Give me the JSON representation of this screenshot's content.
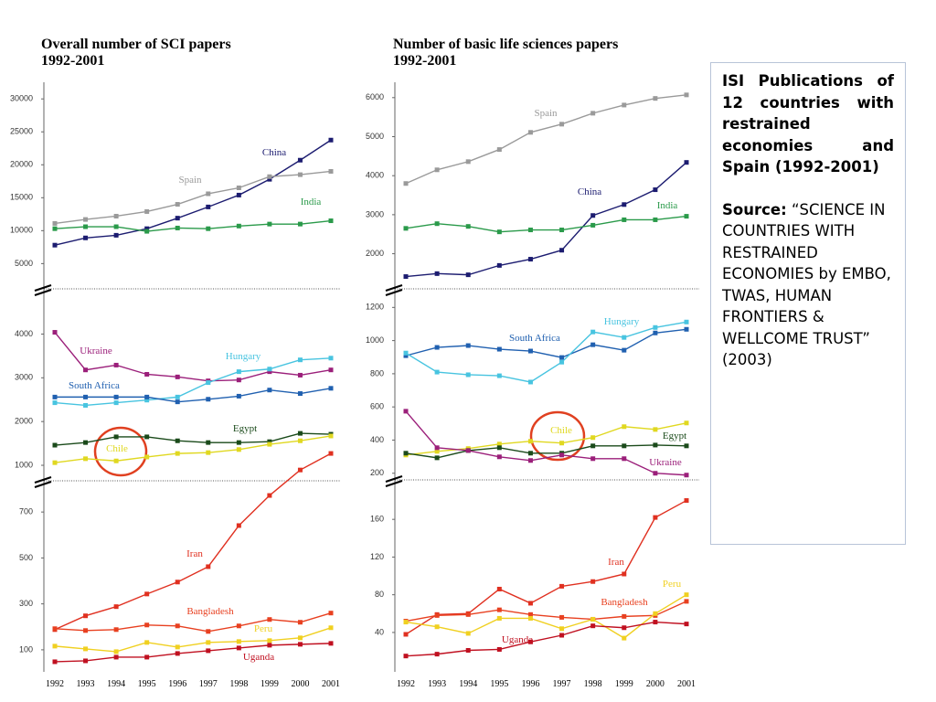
{
  "chart_data": [
    {
      "type": "line",
      "title": "Overall number of SCI papers",
      "subtitle": "1992-2001",
      "categories": [
        "1992",
        "1993",
        "1994",
        "1995",
        "1996",
        "1997",
        "1998",
        "1999",
        "2000",
        "2001"
      ],
      "panels": [
        {
          "ylim": [
            2000,
            31000
          ],
          "yticks": [
            5000,
            10000,
            15000,
            20000,
            25000,
            30000
          ],
          "series": [
            {
              "name": "China",
              "color": "#1c1c70",
              "values": [
                7800,
                8900,
                9300,
                10300,
                11900,
                13600,
                15400,
                17800,
                20700,
                23750
              ]
            },
            {
              "name": "Spain",
              "color": "#9a9a9a",
              "values": [
                11100,
                11700,
                12200,
                12900,
                14000,
                15600,
                16500,
                18200,
                18500,
                19000
              ]
            },
            {
              "name": "India",
              "color": "#2a9a4a",
              "values": [
                10300,
                10600,
                10600,
                9900,
                10400,
                10300,
                10700,
                11000,
                11000,
                11500
              ]
            }
          ]
        },
        {
          "ylim": [
            750,
            4950
          ],
          "yticks": [
            1000,
            2000,
            3000,
            4000
          ],
          "series": [
            {
              "name": "Ukraine",
              "color": "#9b1f7a",
              "values": [
                4040,
                3180,
                3290,
                3080,
                3020,
                2930,
                2950,
                3140,
                3060,
                3180
              ]
            },
            {
              "name": "Hungary",
              "color": "#48c4e0",
              "values": [
                2430,
                2370,
                2430,
                2490,
                2560,
                2890,
                3140,
                3200,
                3410,
                3450
              ]
            },
            {
              "name": "South Africa",
              "color": "#2060b0",
              "values": [
                2560,
                2560,
                2560,
                2560,
                2450,
                2510,
                2580,
                2720,
                2640,
                2760
              ]
            },
            {
              "name": "Egypt",
              "color": "#1a4a1a",
              "values": [
                1460,
                1520,
                1650,
                1650,
                1560,
                1520,
                1520,
                1540,
                1730,
                1710
              ]
            },
            {
              "name": "Chile",
              "color": "#e0d820",
              "values": [
                1060,
                1150,
                1100,
                1190,
                1270,
                1290,
                1360,
                1480,
                1560,
                1670
              ]
            }
          ]
        },
        {
          "ylim": [
            20,
            820
          ],
          "yticks": [
            100,
            300,
            500,
            700
          ],
          "series": [
            {
              "name": "Iran",
              "color": "#e03020",
              "values": [
                188,
                248,
                288,
                343,
                395,
                462,
                641,
                772,
                883,
                955
              ]
            },
            {
              "name": "Bangladesh",
              "color": "#e84020",
              "values": [
                192,
                184,
                188,
                208,
                204,
                180,
                204,
                232,
                220,
                260
              ]
            },
            {
              "name": "Peru",
              "color": "#f0d020",
              "values": [
                116,
                104,
                92,
                132,
                112,
                132,
                136,
                140,
                152,
                196
              ]
            },
            {
              "name": "Uganda",
              "color": "#c01020",
              "values": [
                48,
                52,
                68,
                68,
                84,
                96,
                108,
                120,
                124,
                128
              ]
            }
          ]
        }
      ]
    },
    {
      "type": "line",
      "title": "Number of basic life sciences papers",
      "subtitle": "1992-2001",
      "categories": [
        "1992",
        "1993",
        "1994",
        "1995",
        "1996",
        "1997",
        "1998",
        "1999",
        "2000",
        "2001"
      ],
      "panels": [
        {
          "ylim": [
            1100,
            6300
          ],
          "yticks": [
            2000,
            3000,
            4000,
            5000,
            6000
          ],
          "series": [
            {
              "name": "Spain",
              "color": "#9a9a9a",
              "values": [
                3800,
                4150,
                4360,
                4670,
                5110,
                5320,
                5600,
                5810,
                5980,
                6070
              ]
            },
            {
              "name": "China",
              "color": "#1c1c70",
              "values": [
                1415,
                1490,
                1460,
                1700,
                1860,
                2090,
                2980,
                3260,
                3640,
                4340
              ]
            },
            {
              "name": "India",
              "color": "#2a9a4a",
              "values": [
                2650,
                2770,
                2700,
                2560,
                2610,
                2610,
                2730,
                2870,
                2870,
                2960
              ]
            }
          ]
        },
        {
          "ylim": [
            160,
            1290
          ],
          "yticks": [
            200,
            400,
            600,
            800,
            1000,
            1200
          ],
          "series": [
            {
              "name": "South Africa",
              "color": "#2060b0",
              "values": [
                909,
                959,
                970,
                948,
                937,
                898,
                975,
                942,
                1046,
                1068
              ]
            },
            {
              "name": "Hungary",
              "color": "#48c4e0",
              "values": [
                925,
                810,
                794,
                788,
                750,
                870,
                1052,
                1019,
                1079,
                1112
              ]
            },
            {
              "name": "Chile",
              "color": "#e0d820",
              "values": [
                310,
                332,
                349,
                376,
                393,
                382,
                415,
                481,
                464,
                503
              ]
            },
            {
              "name": "Egypt",
              "color": "#1a4a1a",
              "values": [
                321,
                293,
                337,
                354,
                321,
                321,
                365,
                365,
                370,
                365
              ]
            },
            {
              "name": "Ukraine",
              "color": "#9b1f7a",
              "values": [
                574,
                354,
                337,
                299,
                277,
                310,
                288,
                288,
                200,
                189
              ]
            }
          ]
        },
        {
          "ylim": [
            5,
            198
          ],
          "yticks": [
            40,
            80,
            120,
            160
          ],
          "series": [
            {
              "name": "Iran",
              "color": "#e03020",
              "values": [
                38,
                59,
                60,
                86,
                71,
                89,
                94,
                102,
                162,
                180
              ]
            },
            {
              "name": "Bangladesh",
              "color": "#e84020",
              "values": [
                52,
                58,
                59,
                64,
                59,
                56,
                54,
                57,
                58,
                73
              ]
            },
            {
              "name": "Peru",
              "color": "#f0d020",
              "values": [
                51,
                46,
                39,
                55,
                55,
                44,
                54,
                34,
                60,
                80
              ]
            },
            {
              "name": "Uganda",
              "color": "#c01020",
              "values": [
                15,
                17,
                21,
                22,
                30,
                37,
                47,
                45,
                51,
                49
              ]
            }
          ]
        }
      ]
    }
  ],
  "note": {
    "title": "ISI Publications of 12 countries with restrained economies and Spain (1992-2001)",
    "source_label": "Source:",
    "source_text": "“SCIENCE IN COUNTRIES WITH RESTRAINED ECONOMIES by EMBO, TWAS, HUMAN FRONTIERS & WELLCOME TRUST”",
    "source_year": "(2003)"
  }
}
